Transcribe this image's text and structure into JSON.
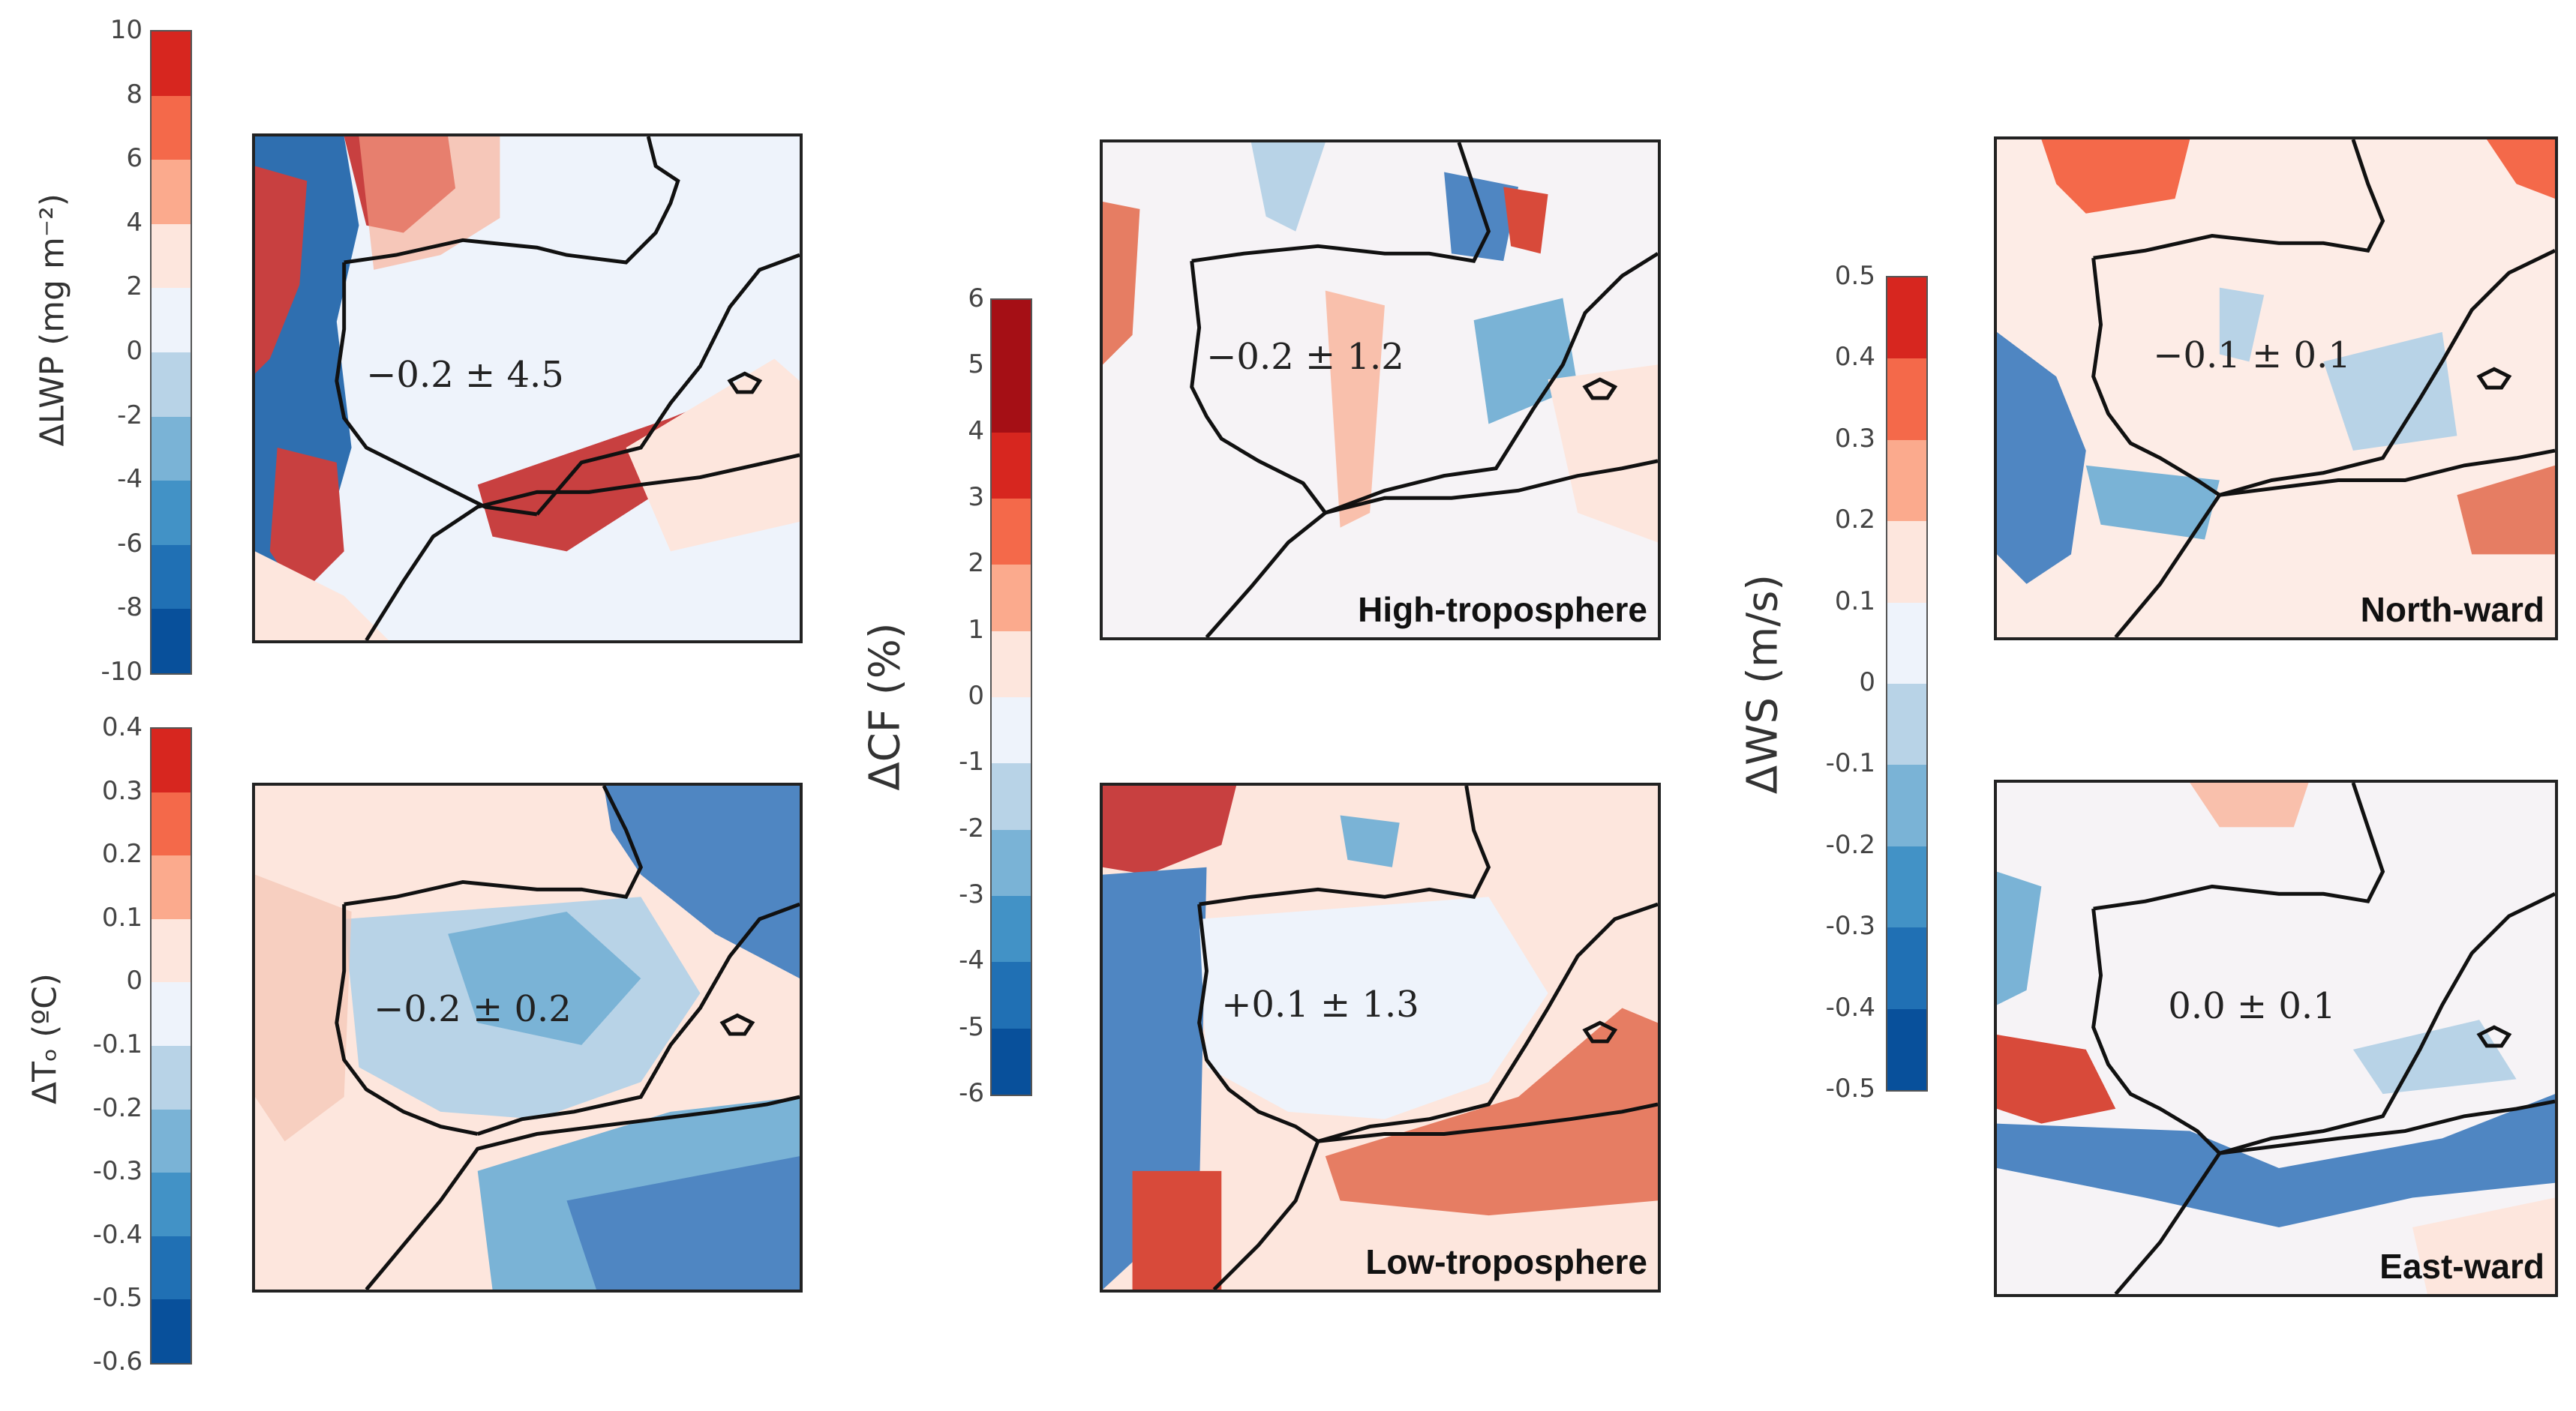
{
  "colors": {
    "ramp11": [
      "#08509b",
      "#2070b4",
      "#4292c6",
      "#7ab3d6",
      "#b8d3e7",
      "#eef3fb",
      "#fde6dd",
      "#fbaa8d",
      "#f4694a",
      "#d7261f",
      "#a50f15"
    ],
    "ramp10": [
      "#08509b",
      "#2070b4",
      "#4292c6",
      "#7ab3d6",
      "#b8d3e7",
      "#eef3fb",
      "#fde6dd",
      "#fbaa8d",
      "#f4694a",
      "#d7261f"
    ],
    "ramp12": [
      "#08509b",
      "#2070b4",
      "#4292c6",
      "#7ab3d6",
      "#b8d3e7",
      "#eef3fb",
      "#fde6dd",
      "#fbaa8d",
      "#f4694a",
      "#d7261f",
      "#a50f15",
      "#a50f15"
    ],
    "land_line": "#111111"
  },
  "colorbars": {
    "lwp": {
      "title": "ΔLWP (mg m⁻²)",
      "ticks": [
        "10",
        "8",
        "6",
        "4",
        "2",
        "0",
        "-2",
        "-4",
        "-6",
        "-8",
        "-10"
      ]
    },
    "to": {
      "title": "ΔTₒ (ºC)",
      "ticks": [
        "0.4",
        "0.3",
        "0.2",
        "0.1",
        "0",
        "-0.1",
        "-0.2",
        "-0.3",
        "-0.4",
        "-0.5",
        "-0.6"
      ]
    },
    "cf": {
      "title": "ΔCF (%)",
      "ticks": [
        "6",
        "5",
        "4",
        "3",
        "2",
        "1",
        "0",
        "-1",
        "-2",
        "-3",
        "-4",
        "-5",
        "-6"
      ]
    },
    "ws": {
      "title": "ΔWS (m/s)",
      "ticks": [
        "0.5",
        "0.4",
        "0.3",
        "0.2",
        "0.1",
        "0",
        "-0.1",
        "-0.2",
        "-0.3",
        "-0.4",
        "-0.5"
      ]
    }
  },
  "panels": {
    "lwp": {
      "stat": "−0.2 ± 4.5",
      "label": ""
    },
    "to": {
      "stat": "−0.2 ± 0.2",
      "label": ""
    },
    "cf_high": {
      "stat": "−0.2 ± 1.2",
      "label": "High-troposphere"
    },
    "cf_low": {
      "stat": "+0.1 ± 1.3",
      "label": "Low-troposphere"
    },
    "ws_north": {
      "stat": "−0.1 ± 0.1",
      "label": "North-ward"
    },
    "ws_east": {
      "stat": "0.0 ± 0.1",
      "label": "East-ward"
    }
  }
}
